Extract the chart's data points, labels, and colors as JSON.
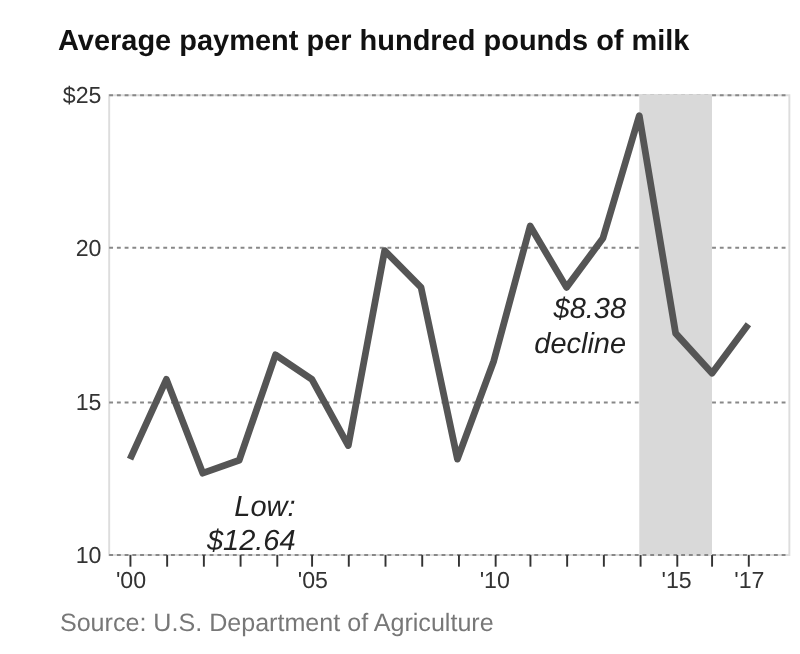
{
  "chart_data": {
    "type": "line",
    "title": "Average payment per hundred pounds of milk",
    "x": [
      2000,
      2001,
      2002,
      2003,
      2004,
      2005,
      2006,
      2007,
      2008,
      2009,
      2010,
      2011,
      2012,
      2013,
      2014,
      2015,
      2016,
      2017
    ],
    "series": [
      {
        "color": "#555555",
        "values": [
          13.1,
          15.7,
          12.64,
          13.06,
          16.5,
          15.7,
          13.54,
          19.9,
          18.7,
          13.1,
          16.3,
          20.7,
          18.7,
          20.3,
          24.3,
          17.2,
          15.9,
          17.5
        ]
      }
    ],
    "xlim": [
      1999.4,
      2018.1
    ],
    "xticks": [
      {
        "value": 2000,
        "label": "'00"
      },
      {
        "value": 2001,
        "label": null
      },
      {
        "value": 2002,
        "label": null
      },
      {
        "value": 2003,
        "label": null
      },
      {
        "value": 2004,
        "label": null
      },
      {
        "value": 2005,
        "label": "'05"
      },
      {
        "value": 2006,
        "label": null
      },
      {
        "value": 2007,
        "label": null
      },
      {
        "value": 2008,
        "label": null
      },
      {
        "value": 2009,
        "label": null
      },
      {
        "value": 2010,
        "label": "'10"
      },
      {
        "value": 2011,
        "label": null
      },
      {
        "value": 2012,
        "label": null
      },
      {
        "value": 2013,
        "label": null
      },
      {
        "value": 2014,
        "label": null
      },
      {
        "value": 2015,
        "label": "'15"
      },
      {
        "value": 2016,
        "label": null
      },
      {
        "value": 2017,
        "label": "'17"
      }
    ],
    "ylim": [
      10,
      25
    ],
    "yticks": [
      10,
      15,
      20,
      {
        "value": 25,
        "label": "$25"
      }
    ],
    "grid": "y",
    "marker": "none",
    "line_style": "solid",
    "bands": [
      {
        "axis": "x",
        "from": 2014,
        "to": 2016,
        "color": "#d9d9d9"
      }
    ],
    "annotations": [
      {
        "text": "Low:\n$12.64",
        "x": 2002,
        "y": 12.64
      },
      "$8.38\ndecline",
      "Source: U.S. Department of Agriculture"
    ]
  }
}
